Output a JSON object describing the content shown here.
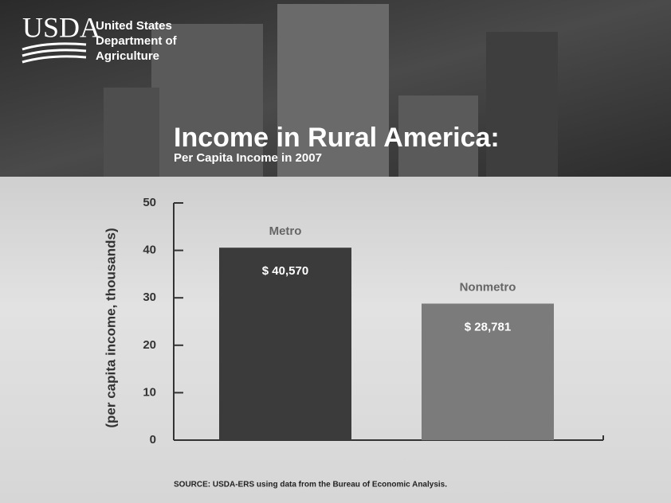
{
  "logo": {
    "mark": "USDA",
    "lines": [
      "United States",
      "Department of",
      "Agriculture"
    ]
  },
  "chart_data": {
    "type": "bar",
    "title": "Income in Rural America:",
    "subtitle": "Per Capita Income in 2007",
    "y_label": "(per capita income, thousands)",
    "categories": [
      "Metro",
      "Nonmetro"
    ],
    "values": [
      40.57,
      28.781
    ],
    "value_labels": [
      "$ 40,570",
      "$ 28,781"
    ],
    "colors": [
      "#3b3b3b",
      "#7b7b7b"
    ],
    "ylim": [
      0,
      50
    ],
    "yticks": [
      0,
      10,
      20,
      30,
      40,
      50
    ],
    "source": "SOURCE: USDA-ERS using data from the Bureau of Economic Analysis."
  }
}
